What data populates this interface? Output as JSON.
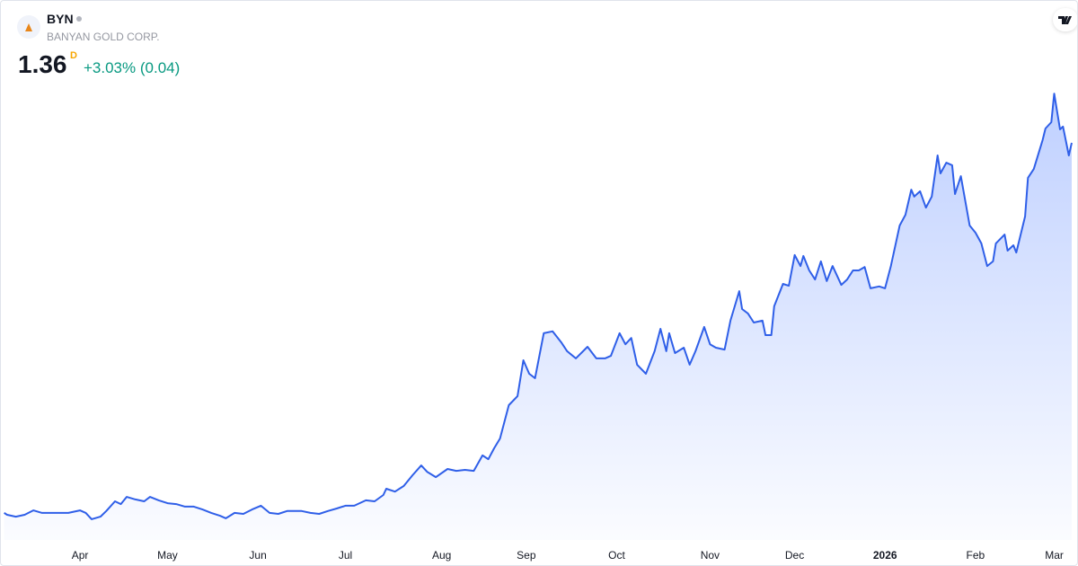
{
  "header": {
    "symbol": "BYN",
    "company": "BANYAN GOLD CORP.",
    "price": "1.36",
    "interval": "D",
    "change": "+3.03% (0.04)"
  },
  "chart_data": {
    "type": "area",
    "color": "#2f5fe8",
    "x": [
      -26,
      -25,
      -22,
      -19,
      -16,
      -13,
      -10,
      -7,
      -4,
      0,
      2,
      4,
      7,
      9,
      12,
      14,
      16,
      19,
      22,
      24,
      27,
      30,
      33,
      36,
      39,
      42,
      45,
      48,
      50,
      53,
      56,
      59,
      62,
      65,
      68,
      71,
      76,
      79,
      82,
      85,
      88,
      91,
      94,
      98,
      101,
      104,
      105,
      108,
      111,
      114,
      117,
      119,
      122,
      126,
      129,
      132,
      135,
      138,
      140,
      142,
      144,
      147,
      150,
      152,
      154,
      156,
      159,
      162,
      165,
      167,
      170,
      174,
      177,
      180,
      182,
      185,
      187,
      189,
      191,
      194,
      197,
      199,
      201,
      202,
      204,
      207,
      209,
      211,
      214,
      216,
      218,
      221,
      223,
      226,
      227,
      229,
      231,
      234,
      235,
      237,
      238,
      241,
      243,
      245,
      247,
      248,
      250,
      252,
      254,
      256,
      258,
      261,
      263,
      265,
      267,
      269,
      271,
      274,
      276,
      278,
      281,
      283,
      285,
      286,
      288,
      290,
      292,
      294,
      295,
      297,
      299,
      300,
      302,
      305,
      307,
      309,
      311,
      313,
      314,
      317,
      318,
      320,
      321,
      324,
      325,
      327,
      330,
      331,
      333,
      334,
      336,
      337,
      339,
      340
    ],
    "values": [
      0.182,
      0.176,
      0.17,
      0.176,
      0.19,
      0.182,
      0.182,
      0.182,
      0.182,
      0.19,
      0.182,
      0.162,
      0.17,
      0.188,
      0.219,
      0.21,
      0.233,
      0.225,
      0.219,
      0.233,
      0.222,
      0.213,
      0.21,
      0.202,
      0.202,
      0.193,
      0.182,
      0.173,
      0.165,
      0.182,
      0.179,
      0.193,
      0.205,
      0.182,
      0.179,
      0.188,
      0.188,
      0.182,
      0.179,
      0.188,
      0.196,
      0.205,
      0.205,
      0.222,
      0.219,
      0.239,
      0.259,
      0.25,
      0.268,
      0.302,
      0.333,
      0.313,
      0.296,
      0.322,
      0.316,
      0.319,
      0.316,
      0.365,
      0.353,
      0.388,
      0.419,
      0.525,
      0.554,
      0.668,
      0.625,
      0.611,
      0.754,
      0.76,
      0.725,
      0.697,
      0.674,
      0.711,
      0.674,
      0.674,
      0.682,
      0.754,
      0.719,
      0.739,
      0.654,
      0.625,
      0.697,
      0.768,
      0.697,
      0.754,
      0.691,
      0.708,
      0.654,
      0.697,
      0.774,
      0.719,
      0.708,
      0.702,
      0.794,
      0.888,
      0.831,
      0.817,
      0.788,
      0.794,
      0.748,
      0.748,
      0.84,
      0.911,
      0.905,
      1.003,
      0.968,
      1.0,
      0.954,
      0.925,
      0.983,
      0.92,
      0.968,
      0.908,
      0.925,
      0.954,
      0.954,
      0.965,
      0.897,
      0.903,
      0.897,
      0.968,
      1.097,
      1.131,
      1.211,
      1.189,
      1.206,
      1.154,
      1.189,
      1.32,
      1.263,
      1.297,
      1.289,
      1.197,
      1.254,
      1.097,
      1.074,
      1.04,
      0.968,
      0.983,
      1.04,
      1.068,
      1.017,
      1.034,
      1.011,
      1.126,
      1.249,
      1.277,
      1.369,
      1.406,
      1.426,
      1.517,
      1.403,
      1.412,
      1.32,
      1.36
    ],
    "xlim": [
      -26.5,
      340.3
    ],
    "ylim": [
      0.1,
      1.8
    ],
    "xticks": [
      {
        "value": 0,
        "label": "Apr"
      },
      {
        "value": 30,
        "label": "May"
      },
      {
        "value": 61,
        "label": "Jun"
      },
      {
        "value": 91,
        "label": "Jul"
      },
      {
        "value": 124,
        "label": "Aug"
      },
      {
        "value": 153,
        "label": "Sep"
      },
      {
        "value": 184,
        "label": "Oct"
      },
      {
        "value": 216,
        "label": "Nov"
      },
      {
        "value": 245,
        "label": "Dec"
      },
      {
        "value": 276,
        "label": "2026"
      },
      {
        "value": 307,
        "label": "Feb"
      },
      {
        "value": 334,
        "label": "Mar"
      }
    ]
  }
}
